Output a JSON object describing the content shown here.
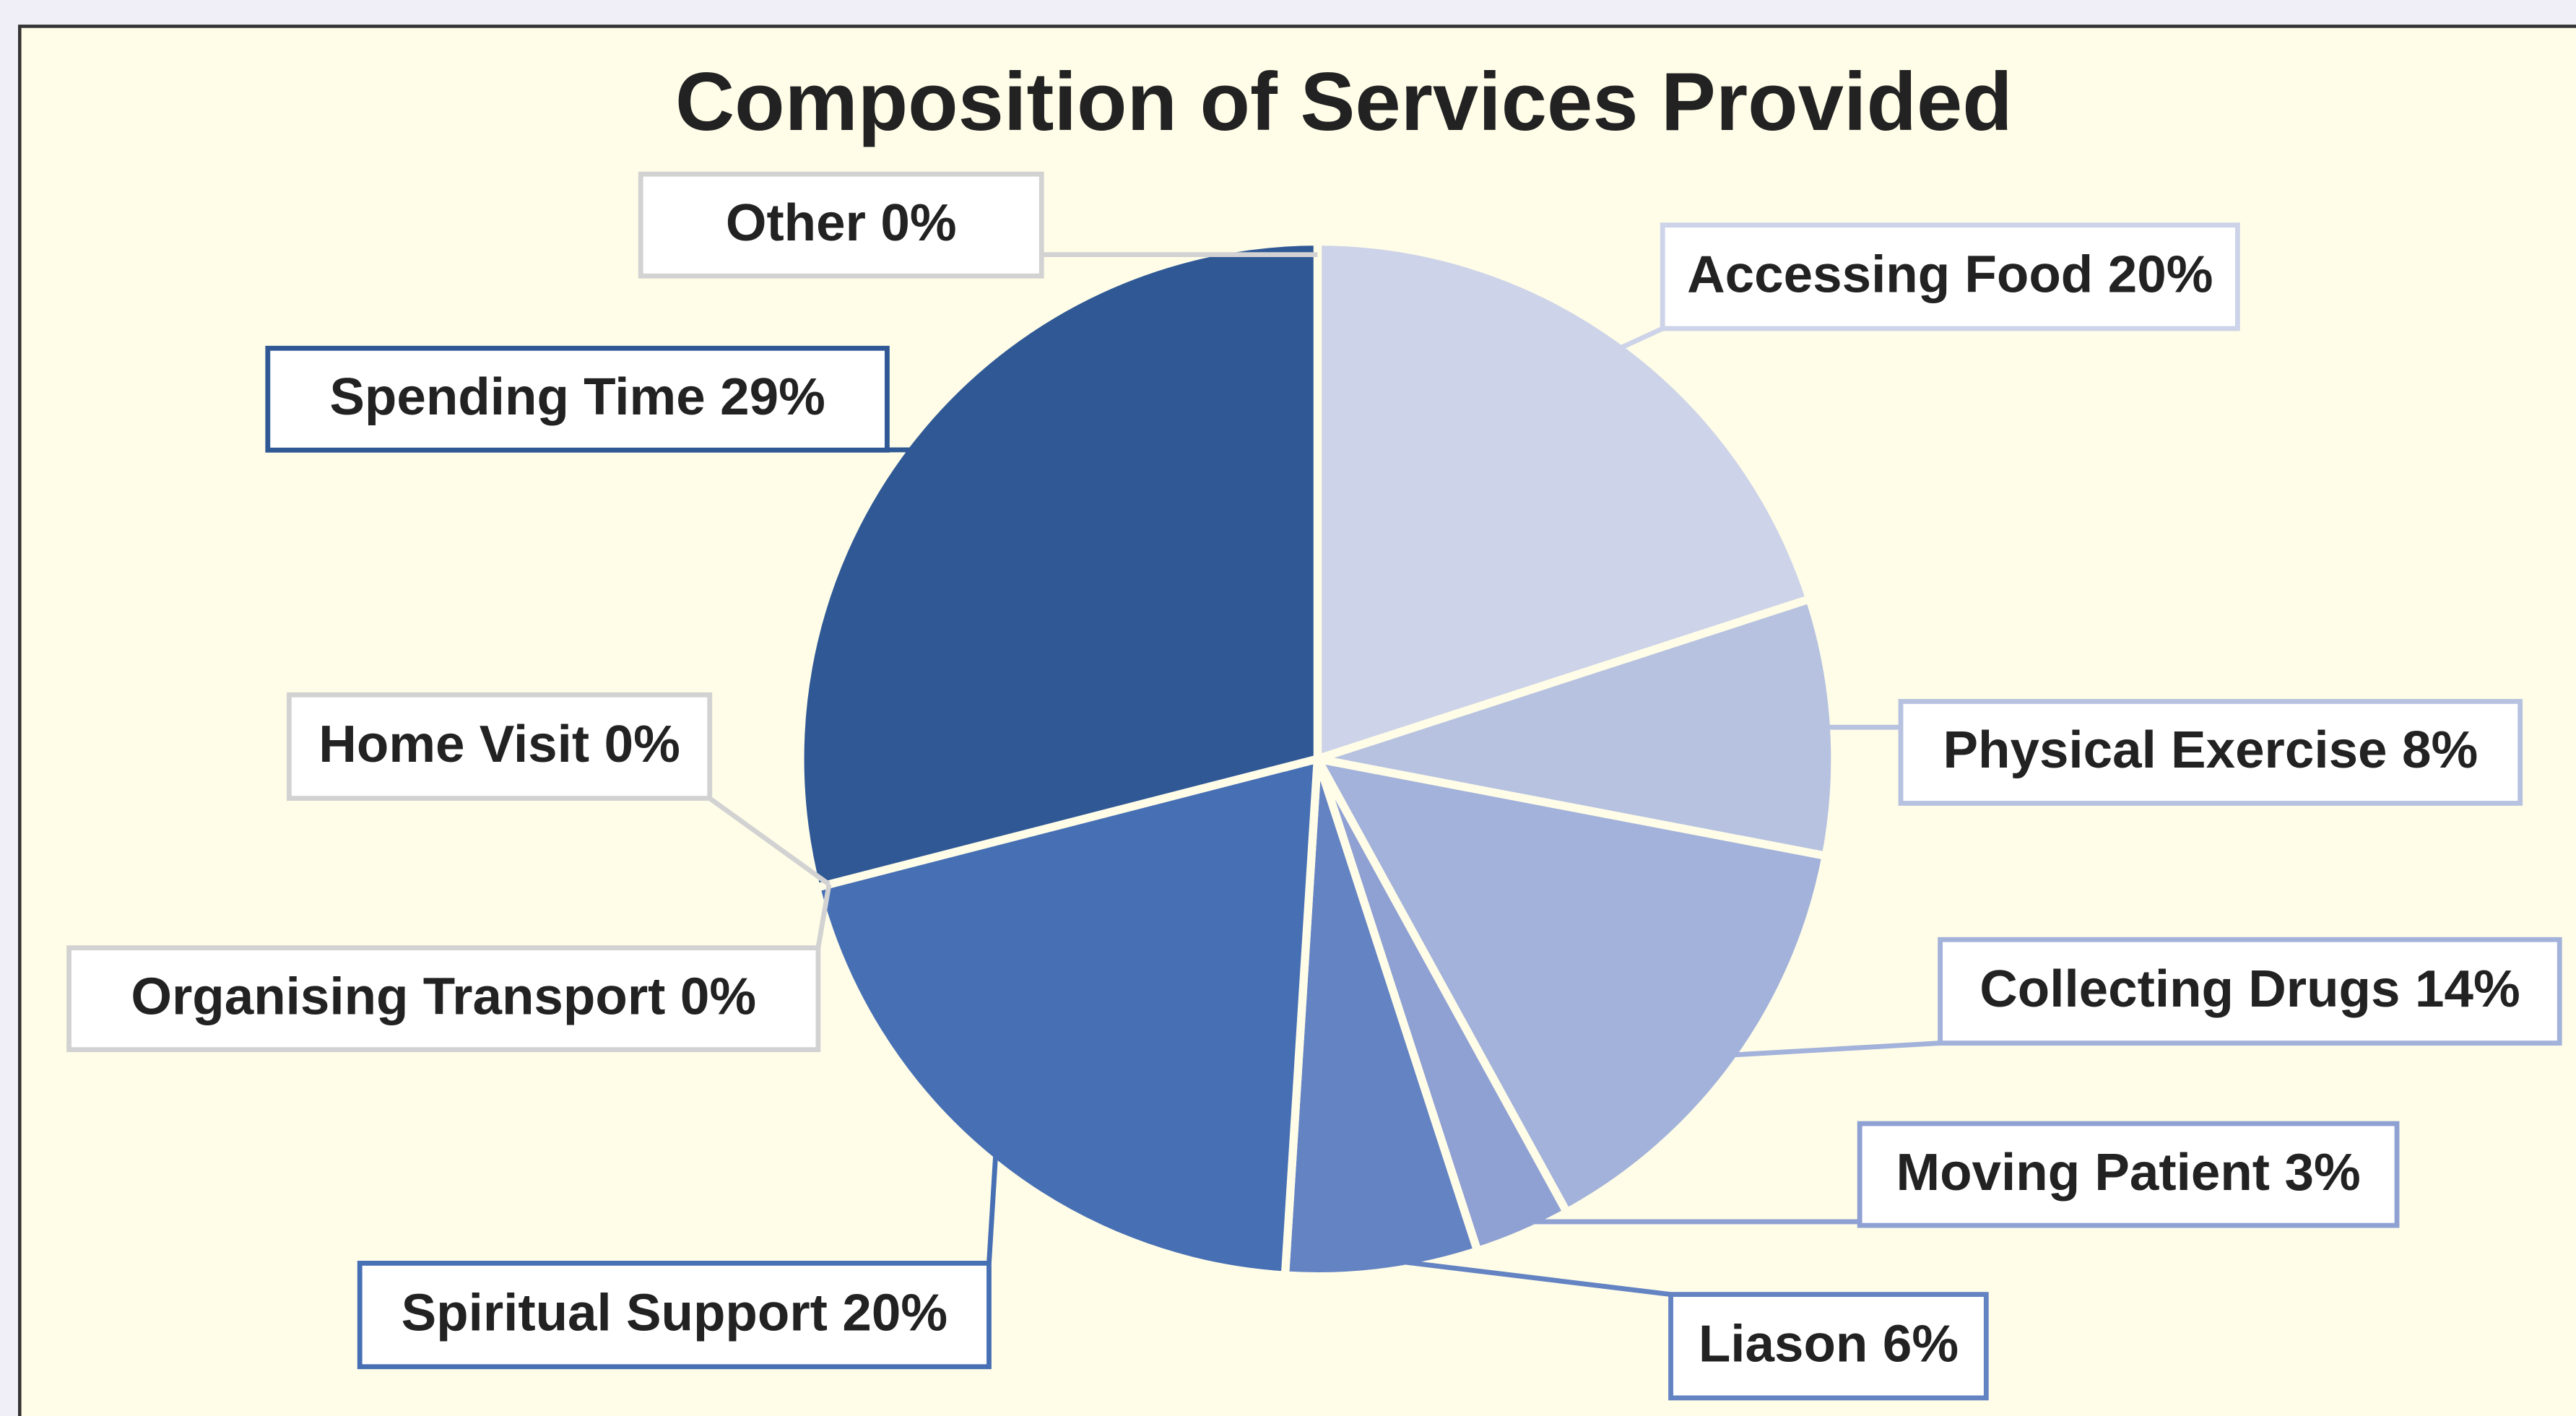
{
  "chart_data": {
    "type": "pie",
    "title": "Composition of Services Provided",
    "categories": [
      "Accessing Food",
      "Physical Exercise",
      "Collecting Drugs",
      "Moving Patient",
      "Liason",
      "Spiritual Support",
      "Organising Transport",
      "Home Visit",
      "Spending Time",
      "Other"
    ],
    "values": [
      20,
      8,
      14,
      3,
      6,
      20,
      0,
      0,
      29,
      0
    ],
    "value_labels": [
      "20%",
      "8%",
      "14%",
      "3%",
      "6%",
      "20%",
      "0%",
      "0%",
      "29%",
      "0%"
    ],
    "colors": [
      "#cdd3e8",
      "#b7c2e0",
      "#a3b2da",
      "#8fa0d3",
      "#6483c3",
      "#476fb4",
      "#d2d2d2",
      "#d2d2d2",
      "#2f5895",
      "#d2d2d2"
    ]
  }
}
